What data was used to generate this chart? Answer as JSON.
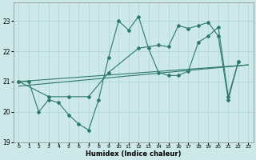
{
  "xlabel": "Humidex (Indice chaleur)",
  "bg_color": "#cce8e8",
  "line_color": "#2d7a6a",
  "grid_color": "#aad4d4",
  "xlim": [
    -0.5,
    23.5
  ],
  "ylim": [
    19.0,
    23.6
  ],
  "yticks": [
    19,
    20,
    21,
    22,
    23
  ],
  "xticks": [
    0,
    1,
    2,
    3,
    4,
    5,
    6,
    7,
    8,
    9,
    10,
    11,
    12,
    13,
    14,
    15,
    16,
    17,
    18,
    19,
    20,
    21,
    22,
    23
  ],
  "series0_x": [
    0,
    1,
    2,
    3,
    4,
    5,
    6,
    7,
    8,
    9,
    10,
    11,
    12,
    13,
    14,
    15,
    16,
    17,
    18,
    19,
    20,
    21,
    22
  ],
  "series0_y": [
    21.0,
    21.0,
    20.0,
    20.4,
    20.3,
    19.9,
    19.6,
    19.4,
    20.4,
    21.8,
    23.0,
    22.7,
    23.15,
    22.1,
    21.3,
    21.2,
    21.2,
    21.35,
    22.3,
    22.5,
    22.8,
    20.5,
    21.65
  ],
  "series1_x": [
    0,
    3,
    5,
    7,
    9,
    12,
    14,
    15,
    16,
    17,
    18,
    19,
    20,
    21,
    22
  ],
  "series1_y": [
    21.0,
    20.5,
    20.5,
    20.5,
    21.3,
    22.1,
    22.2,
    22.15,
    22.85,
    22.75,
    22.85,
    22.95,
    22.5,
    20.4,
    21.65
  ],
  "line2_x": [
    0,
    23
  ],
  "line2_y": [
    21.0,
    21.55
  ],
  "line3_x": [
    0,
    23
  ],
  "line3_y": [
    20.85,
    21.55
  ]
}
